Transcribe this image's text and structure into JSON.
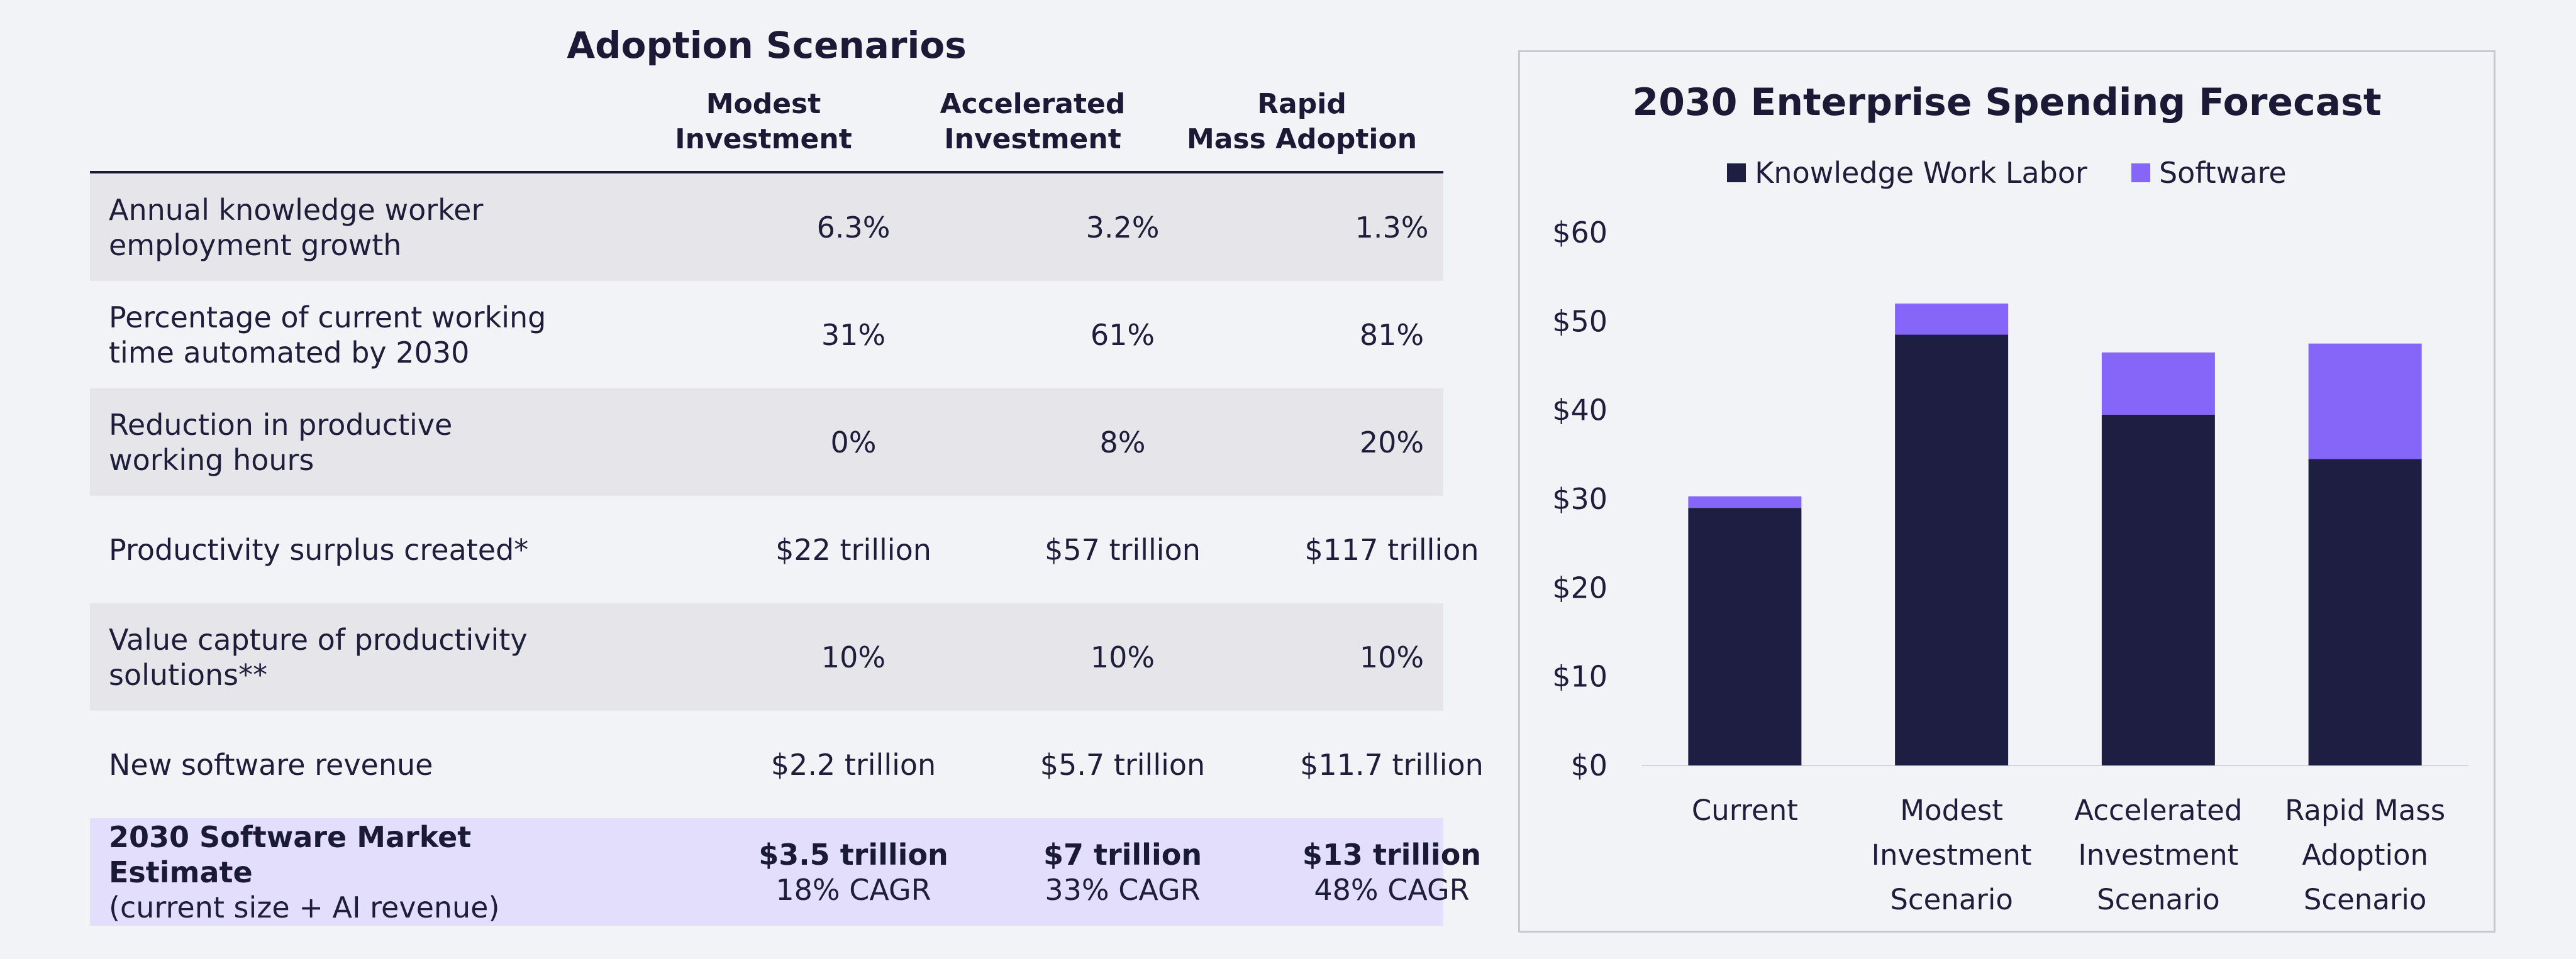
{
  "table": {
    "title": "Adoption Scenarios",
    "columns": [
      [
        "Modest",
        "Investment"
      ],
      [
        "Accelerated",
        "Investment"
      ],
      [
        "Rapid",
        "Mass Adoption"
      ]
    ],
    "rows": [
      {
        "label": [
          "Annual knowledge worker",
          "employment growth"
        ],
        "values": [
          "6.3%",
          "3.2%",
          "1.3%"
        ]
      },
      {
        "label": [
          "Percentage of current working",
          "time automated by 2030"
        ],
        "values": [
          "31%",
          "61%",
          "81%"
        ]
      },
      {
        "label": [
          "Reduction in productive",
          "working hours"
        ],
        "values": [
          "0%",
          "8%",
          "20%"
        ]
      },
      {
        "label": [
          "Productivity surplus created*"
        ],
        "values": [
          "$22 trillion",
          "$57 trillion",
          "$117 trillion"
        ]
      },
      {
        "label": [
          "Value capture of productivity",
          "solutions**"
        ],
        "values": [
          "10%",
          "10%",
          "10%"
        ]
      },
      {
        "label": [
          "New software revenue"
        ],
        "values": [
          "$2.2 trillion",
          "$5.7 trillion",
          "$11.7 trillion"
        ]
      }
    ],
    "summary": {
      "label_bold": "2030 Software Market Estimate",
      "label_sub": "(current size + AI revenue)",
      "values": [
        {
          "main": "$3.5 trillion",
          "sub": "18% CAGR"
        },
        {
          "main": "$7 trillion",
          "sub": "33% CAGR"
        },
        {
          "main": "$13 trillion",
          "sub": "48% CAGR"
        }
      ]
    }
  },
  "chart_data": {
    "type": "bar",
    "stacked": true,
    "title": "2030 Enterprise Spending Forecast",
    "categories": [
      [
        "Current"
      ],
      [
        "Modest",
        "Investment",
        "Scenario"
      ],
      [
        "Accelerated",
        "Investment",
        "Scenario"
      ],
      [
        "Rapid Mass",
        "Adoption",
        "Scenario"
      ]
    ],
    "series": [
      {
        "name": "Knowledge Work Labor",
        "color": "#1e1e42",
        "values": [
          29,
          48.5,
          39.5,
          34.5
        ]
      },
      {
        "name": "Software",
        "color": "#8566f8",
        "values": [
          1.3,
          3.5,
          7,
          13
        ]
      }
    ],
    "ylim": [
      0,
      60
    ],
    "yticks": [
      "$0",
      "$10",
      "$20",
      "$30",
      "$40",
      "$50",
      "$60"
    ],
    "ytick_values": [
      0,
      10,
      20,
      30,
      40,
      50,
      60
    ],
    "legend_position": "top",
    "grid": false
  },
  "colors": {
    "background": "#f2f3f7",
    "row_shade": "#e6e6ea",
    "highlight": "#e2defc",
    "text": "#1e1e3c"
  }
}
